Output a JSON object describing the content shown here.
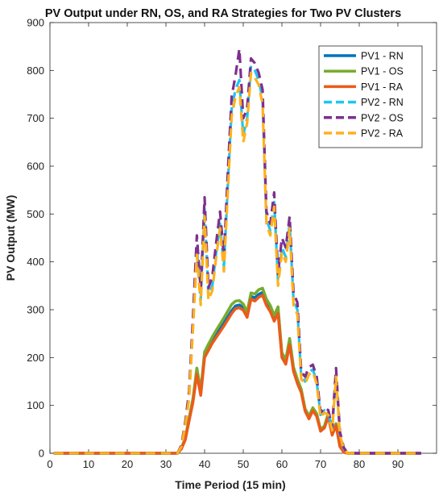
{
  "chart_data": {
    "type": "line",
    "title": "PV Output under RN, OS, and RA Strategies for Two PV Clusters",
    "xlabel": "Time Period (15 min)",
    "ylabel": "PV Output (MW)",
    "xlim": [
      0,
      100
    ],
    "ylim": [
      0,
      900
    ],
    "xticks": [
      "0",
      "10",
      "20",
      "30",
      "40",
      "50",
      "60",
      "70",
      "80",
      "90"
    ],
    "yticks": [
      "0",
      "100",
      "200",
      "300",
      "400",
      "500",
      "600",
      "700",
      "800",
      "900"
    ],
    "grid": false,
    "legend_position": "top-right",
    "x": [
      1,
      2,
      3,
      4,
      5,
      6,
      7,
      8,
      9,
      10,
      11,
      12,
      13,
      14,
      15,
      16,
      17,
      18,
      19,
      20,
      21,
      22,
      23,
      24,
      25,
      26,
      27,
      28,
      29,
      30,
      31,
      32,
      33,
      34,
      35,
      36,
      37,
      38,
      39,
      40,
      41,
      42,
      43,
      44,
      45,
      46,
      47,
      48,
      49,
      50,
      51,
      52,
      53,
      54,
      55,
      56,
      57,
      58,
      59,
      60,
      61,
      62,
      63,
      64,
      65,
      66,
      67,
      68,
      69,
      70,
      71,
      72,
      73,
      74,
      75,
      76,
      77,
      78,
      79,
      80,
      81,
      82,
      83,
      84,
      85,
      86,
      87,
      88,
      89,
      90,
      91,
      92,
      93,
      94,
      95,
      96
    ],
    "series": [
      {
        "name": "PV1 - RN",
        "color": "#0072BD",
        "dash": "solid",
        "values": [
          0,
          0,
          0,
          0,
          0,
          0,
          0,
          0,
          0,
          0,
          0,
          0,
          0,
          0,
          0,
          0,
          0,
          0,
          0,
          0,
          0,
          0,
          0,
          0,
          0,
          0,
          0,
          0,
          0,
          0,
          0,
          0,
          0,
          10,
          30,
          70,
          110,
          170,
          125,
          205,
          220,
          235,
          248,
          260,
          272,
          285,
          298,
          308,
          310,
          305,
          290,
          328,
          325,
          332,
          336,
          315,
          302,
          282,
          298,
          205,
          190,
          232,
          175,
          150,
          130,
          90,
          75,
          92,
          80,
          48,
          55,
          80,
          40,
          60,
          15,
          3,
          0,
          0,
          0,
          0,
          0,
          0,
          0,
          0,
          0,
          0,
          0,
          0,
          0,
          0,
          0,
          0,
          0,
          0,
          0,
          0
        ]
      },
      {
        "name": "PV1 - OS",
        "color": "#77AC30",
        "dash": "solid",
        "values": [
          0,
          0,
          0,
          0,
          0,
          0,
          0,
          0,
          0,
          0,
          0,
          0,
          0,
          0,
          0,
          0,
          0,
          0,
          0,
          0,
          0,
          0,
          0,
          0,
          0,
          0,
          0,
          0,
          0,
          0,
          0,
          0,
          0,
          11,
          32,
          74,
          115,
          178,
          131,
          212,
          228,
          243,
          257,
          270,
          283,
          297,
          311,
          318,
          319,
          312,
          295,
          335,
          333,
          342,
          345,
          322,
          309,
          288,
          306,
          210,
          196,
          240,
          180,
          155,
          134,
          93,
          78,
          95,
          83,
          50,
          57,
          84,
          42,
          62,
          16,
          3,
          0,
          0,
          0,
          0,
          0,
          0,
          0,
          0,
          0,
          0,
          0,
          0,
          0,
          0,
          0,
          0,
          0,
          0,
          0,
          0
        ]
      },
      {
        "name": "PV1 - RA",
        "color": "#EB5B1A",
        "dash": "solid",
        "values": [
          0,
          0,
          0,
          0,
          0,
          0,
          0,
          0,
          0,
          0,
          0,
          0,
          0,
          0,
          0,
          0,
          0,
          0,
          0,
          0,
          0,
          0,
          0,
          0,
          0,
          0,
          0,
          0,
          0,
          0,
          0,
          0,
          0,
          9,
          28,
          68,
          107,
          165,
          121,
          200,
          215,
          230,
          242,
          254,
          266,
          279,
          292,
          302,
          304,
          299,
          284,
          322,
          318,
          326,
          330,
          309,
          296,
          276,
          292,
          200,
          186,
          227,
          171,
          146,
          127,
          88,
          72,
          89,
          77,
          46,
          53,
          77,
          38,
          58,
          14,
          2,
          0,
          0,
          0,
          0,
          0,
          0,
          0,
          0,
          0,
          0,
          0,
          0,
          0,
          0,
          0,
          0,
          0,
          0,
          0,
          0
        ]
      },
      {
        "name": "PV2 - RN",
        "color": "#1CC6F2",
        "dash": "dashed",
        "values": [
          0,
          0,
          0,
          0,
          0,
          0,
          0,
          0,
          0,
          0,
          0,
          0,
          0,
          0,
          0,
          0,
          0,
          0,
          0,
          0,
          0,
          0,
          0,
          0,
          0,
          0,
          0,
          0,
          0,
          0,
          0,
          0,
          0,
          15,
          60,
          120,
          270,
          430,
          320,
          510,
          330,
          350,
          420,
          480,
          390,
          560,
          720,
          760,
          780,
          665,
          700,
          810,
          800,
          780,
          740,
          490,
          465,
          525,
          360,
          430,
          410,
          480,
          320,
          300,
          160,
          150,
          170,
          175,
          150,
          80,
          90,
          85,
          50,
          165,
          40,
          10,
          0,
          0,
          0,
          0,
          0,
          0,
          0,
          0,
          0,
          0,
          0,
          0,
          0,
          0,
          0,
          0,
          0,
          0,
          0,
          0
        ]
      },
      {
        "name": "PV2 - OS",
        "color": "#7E2F8E",
        "dash": "dashed",
        "values": [
          0,
          0,
          0,
          0,
          0,
          0,
          0,
          0,
          0,
          0,
          0,
          0,
          0,
          0,
          0,
          0,
          0,
          0,
          0,
          0,
          0,
          0,
          0,
          0,
          0,
          0,
          0,
          0,
          0,
          0,
          0,
          0,
          0,
          17,
          65,
          130,
          285,
          455,
          340,
          535,
          345,
          370,
          440,
          505,
          410,
          585,
          745,
          790,
          845,
          700,
          720,
          825,
          815,
          795,
          760,
          505,
          480,
          545,
          375,
          450,
          430,
          495,
          335,
          315,
          170,
          160,
          180,
          185,
          160,
          85,
          95,
          90,
          55,
          178,
          45,
          12,
          0,
          0,
          0,
          0,
          0,
          0,
          0,
          0,
          0,
          0,
          0,
          0,
          0,
          0,
          0,
          0,
          0,
          0,
          0,
          0
        ]
      },
      {
        "name": "PV2 - RA",
        "color": "#FFB11B",
        "dash": "dashed",
        "values": [
          0,
          0,
          0,
          0,
          0,
          0,
          0,
          0,
          0,
          0,
          0,
          0,
          0,
          0,
          0,
          0,
          0,
          0,
          0,
          0,
          0,
          0,
          0,
          0,
          0,
          0,
          0,
          0,
          0,
          0,
          0,
          0,
          0,
          14,
          58,
          115,
          260,
          415,
          310,
          495,
          320,
          340,
          410,
          470,
          380,
          545,
          705,
          745,
          765,
          650,
          690,
          795,
          785,
          770,
          730,
          480,
          455,
          515,
          350,
          420,
          400,
          470,
          310,
          290,
          155,
          145,
          165,
          170,
          145,
          75,
          85,
          80,
          48,
          160,
          38,
          9,
          0,
          0,
          0,
          0,
          0,
          0,
          0,
          0,
          0,
          0,
          0,
          0,
          0,
          0,
          0,
          0,
          0,
          0,
          0,
          0
        ]
      }
    ]
  }
}
